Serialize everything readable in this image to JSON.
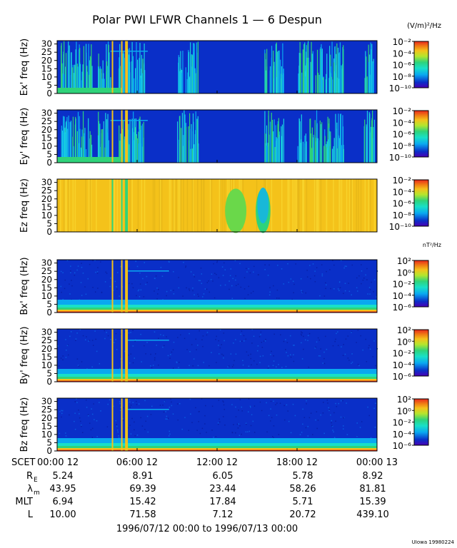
{
  "title": "Polar PWI LFWR Channels 1 — 6 Despun",
  "footer_range": "1996/07/12 00:00 to 1996/07/13 00:00",
  "credit": "UIowa 19980224",
  "colors": {
    "background": "#ffffff",
    "weak": "#0a2fc8",
    "moderate": "#2fd37a",
    "strong": "#f4c21a",
    "max": "#e8281e"
  },
  "chart_data": {
    "type": "heatmap",
    "x_axis": {
      "label": "SCET",
      "range": [
        "1996/07/12 00:00",
        "1996/07/13 00:00"
      ],
      "range_hours": [
        0,
        24
      ],
      "ticks": [
        {
          "hours": 0,
          "label": "00:00 12"
        },
        {
          "hours": 6,
          "label": "06:00 12"
        },
        {
          "hours": 12,
          "label": "12:00 12"
        },
        {
          "hours": 18,
          "label": "18:00 12"
        },
        {
          "hours": 24,
          "label": "00:00 13"
        }
      ]
    },
    "panels": [
      {
        "ylabel": "Ex' freq (Hz)",
        "yrange": [
          0,
          32
        ],
        "yticks": [
          "0",
          "5",
          "10",
          "15",
          "20",
          "25",
          "30"
        ],
        "colorbar_unit": "(V/m)²/Hz",
        "colorbar_ticks": [
          "10⁻²",
          "10⁻⁴",
          "10⁻⁶",
          "10⁻⁸",
          "10⁻¹⁰"
        ],
        "colorbar_range_log10": [
          -10,
          -2
        ],
        "pattern": "electric"
      },
      {
        "ylabel": "Ey' freq (Hz)",
        "yrange": [
          0,
          32
        ],
        "yticks": [
          "0",
          "5",
          "10",
          "15",
          "20",
          "25",
          "30"
        ],
        "colorbar_unit": "",
        "colorbar_ticks": [
          "10⁻²",
          "10⁻⁴",
          "10⁻⁶",
          "10⁻⁸",
          "10⁻¹⁰"
        ],
        "colorbar_range_log10": [
          -10,
          -2
        ],
        "pattern": "electric"
      },
      {
        "ylabel": "Ez freq (Hz)",
        "yrange": [
          0,
          32
        ],
        "yticks": [
          "0",
          "5",
          "10",
          "15",
          "20",
          "25",
          "30"
        ],
        "colorbar_unit": "",
        "colorbar_ticks": [
          "10⁻²",
          "10⁻⁴",
          "10⁻⁶",
          "10⁻⁸",
          "10⁻¹⁰"
        ],
        "colorbar_range_log10": [
          -10,
          -2
        ],
        "pattern": "ez"
      },
      {
        "ylabel": "Bx' freq (Hz)",
        "yrange": [
          0,
          32
        ],
        "yticks": [
          "0",
          "5",
          "10",
          "15",
          "20",
          "25",
          "30"
        ],
        "colorbar_unit": "nT²/Hz",
        "colorbar_ticks": [
          "10²",
          "10⁰",
          "10⁻²",
          "10⁻⁴",
          "10⁻⁶"
        ],
        "colorbar_range_log10": [
          -6,
          2
        ],
        "pattern": "magnetic"
      },
      {
        "ylabel": "By' freq (Hz)",
        "yrange": [
          0,
          32
        ],
        "yticks": [
          "0",
          "5",
          "10",
          "15",
          "20",
          "25",
          "30"
        ],
        "colorbar_unit": "",
        "colorbar_ticks": [
          "10²",
          "10⁰",
          "10⁻²",
          "10⁻⁴",
          "10⁻⁶"
        ],
        "colorbar_range_log10": [
          -6,
          2
        ],
        "pattern": "magnetic"
      },
      {
        "ylabel": "Bz freq (Hz)",
        "yrange": [
          0,
          32
        ],
        "yticks": [
          "0",
          "5",
          "10",
          "15",
          "20",
          "25",
          "30"
        ],
        "colorbar_unit": "",
        "colorbar_ticks": [
          "10²",
          "10⁰",
          "10⁻²",
          "10⁻⁴",
          "10⁻⁶"
        ],
        "colorbar_range_log10": [
          -6,
          2
        ],
        "pattern": "magnetic"
      }
    ],
    "ephemeris": [
      {
        "label": "R",
        "sub": "E",
        "values": [
          "5.24",
          "8.91",
          "6.05",
          "5.78",
          "8.92"
        ]
      },
      {
        "label": "λ",
        "sub": "m",
        "values": [
          "43.95",
          "69.39",
          "23.44",
          "58.26",
          "81.81"
        ]
      },
      {
        "label": "MLT",
        "sub": "",
        "values": [
          "6.94",
          "15.42",
          "17.84",
          "5.71",
          "15.39"
        ]
      },
      {
        "label": "L",
        "sub": "",
        "values": [
          "10.00",
          "71.58",
          "7.12",
          "20.72",
          "439.10"
        ]
      }
    ],
    "features": {
      "vertical_lines_hours": [
        4.1,
        4.8,
        5.1,
        5.2
      ],
      "electric_bursts_hours": [
        [
          0.2,
          2.6
        ],
        [
          3.0,
          4.0
        ],
        [
          4.6,
          6.6
        ],
        [
          9.0,
          10.6
        ],
        [
          15.5,
          17.0
        ],
        [
          18.0,
          21.5
        ],
        [
          23.0,
          23.8
        ]
      ],
      "ez_dip_hours": [
        [
          12.6,
          14.2
        ],
        [
          14.9,
          16.0
        ]
      ]
    }
  }
}
